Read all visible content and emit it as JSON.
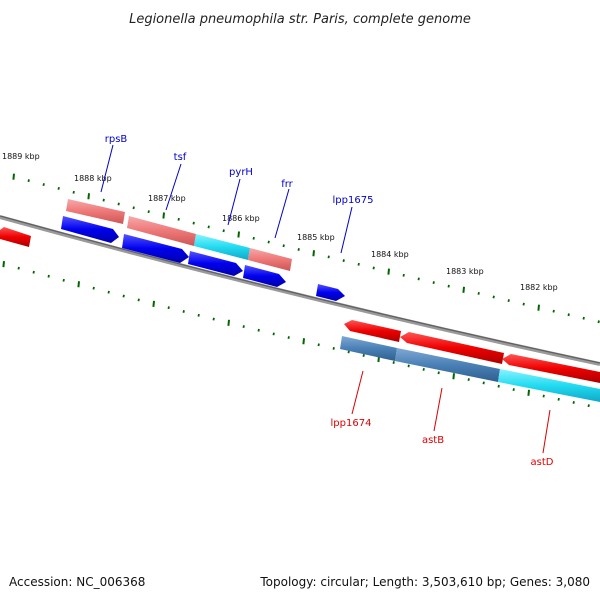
{
  "title": "Legionella pneumophila str. Paris, complete genome",
  "footer": {
    "accession": "Accession: NC_006368",
    "summary": "Topology: circular; Length: 3,503,610 bp; Genes: 3,080"
  },
  "ticks": [
    {
      "label": "1889 kbp"
    },
    {
      "label": "1888 kbp"
    },
    {
      "label": "1887 kbp"
    },
    {
      "label": "1886 kbp"
    },
    {
      "label": "1885 kbp"
    },
    {
      "label": "1884 kbp"
    },
    {
      "label": "1883 kbp"
    },
    {
      "label": "1882 kbp"
    }
  ],
  "upper_labels": [
    {
      "name": "rpsB",
      "color": "#0000cc"
    },
    {
      "name": "tsf",
      "color": "#0000cc"
    },
    {
      "name": "pyrH",
      "color": "#0000cc"
    },
    {
      "name": "frr",
      "color": "#0000cc"
    },
    {
      "name": "lpp1675",
      "color": "#0000cc"
    }
  ],
  "lower_labels": [
    {
      "name": "lpp1674",
      "color": "#dd0000"
    },
    {
      "name": "astB",
      "color": "#dd0000"
    },
    {
      "name": "astD",
      "color": "#dd0000"
    }
  ],
  "colors": {
    "backbone": "#808080",
    "cds_forward": "#e80000",
    "cds_reverse": "#0000e0",
    "gene_pink": "#f08080",
    "gene_cyan": "#22ddee",
    "gene_steel": "#4682b4",
    "tick": "#006600"
  }
}
